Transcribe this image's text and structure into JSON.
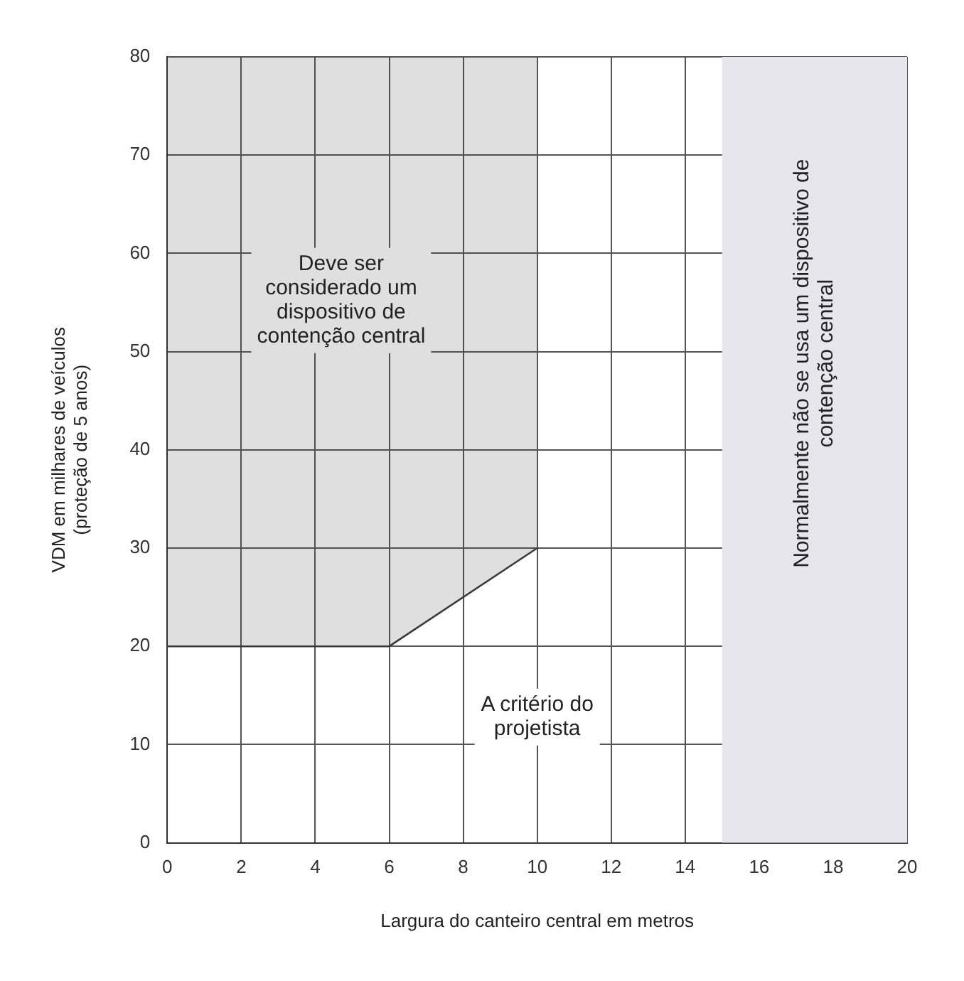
{
  "chart_data": {
    "type": "line",
    "xlabel": "Largura do canteiro central em metros",
    "ylabel": "VDM em milhares de veículos\n(proteção de 5 anos)",
    "x": [
      0,
      6,
      10
    ],
    "series": [
      {
        "color": "#3a3a3a",
        "values": [
          20,
          20,
          30
        ],
        "lower": [
          20,
          20,
          30
        ],
        "upper": [
          80,
          80,
          80
        ]
      }
    ],
    "xlim": [
      0,
      20
    ],
    "xticks": [
      0,
      2,
      4,
      6,
      8,
      10,
      12,
      14,
      16,
      18,
      20
    ],
    "ylim": [
      0,
      80
    ],
    "yticks": [
      0,
      10,
      20,
      30,
      40,
      50,
      60,
      70,
      80
    ],
    "grid": true,
    "legend": false,
    "marker": "none",
    "line_style": "solid",
    "bands": [
      {
        "axis": "x",
        "from": 15,
        "to": 20,
        "label": "Normalmente não se usa um dispositivo de\ncontenção central",
        "color": "#e6e6ec"
      }
    ],
    "annotations": [
      "Deve ser\nconsiderado um\ndispositivo de\ncontenção central",
      "A critério do\nprojetista"
    ]
  }
}
